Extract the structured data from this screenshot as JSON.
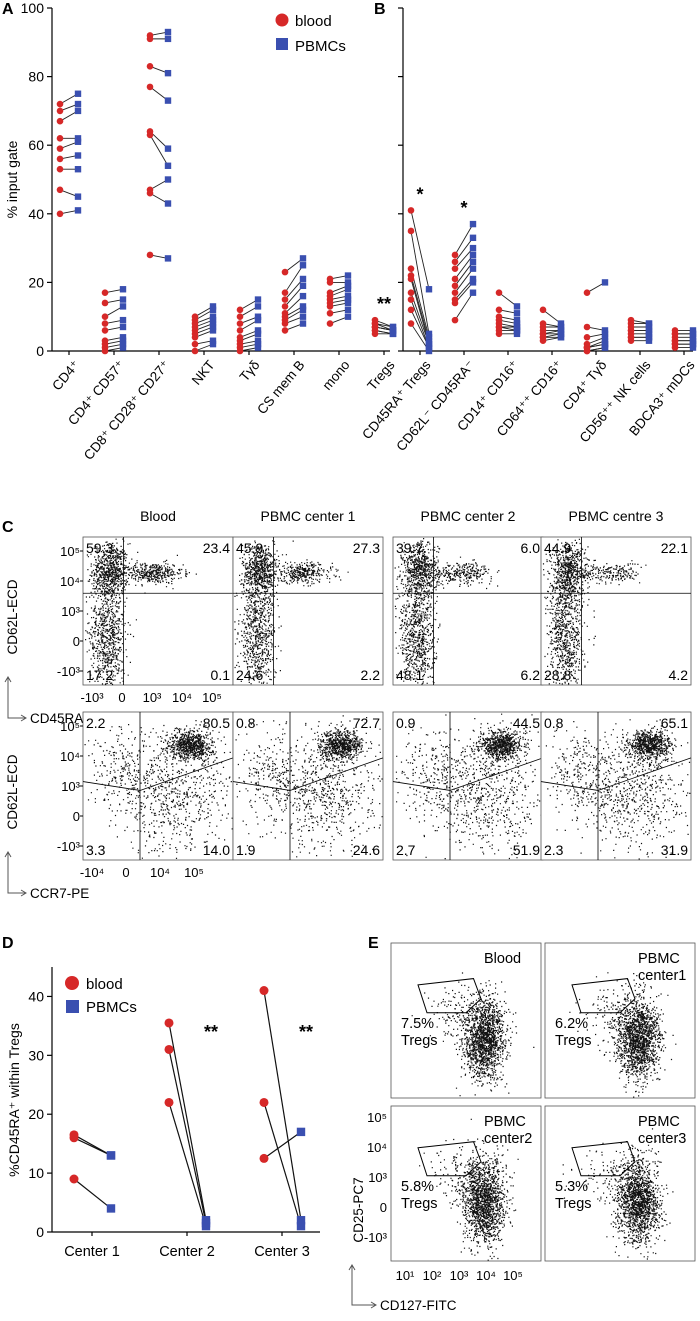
{
  "colors": {
    "blood": "#d62828",
    "pbmc": "#3a4fb0",
    "axis": "#000000"
  },
  "chart_data": [
    {
      "panel": "A",
      "type": "scatter",
      "ylabel": "% input gate",
      "ylim": [
        0,
        100
      ],
      "yticks": [
        "0",
        "20",
        "40",
        "60",
        "80",
        "100"
      ],
      "legend": [
        {
          "name": "blood",
          "marker": "circle"
        },
        {
          "name": "PBMCs",
          "marker": "square"
        }
      ],
      "categories": [
        {
          "label": "CD4⁺",
          "sig": "",
          "blood": [
            40,
            47,
            53,
            56,
            59,
            62,
            67,
            70,
            72
          ],
          "pbmc": [
            41,
            45,
            53,
            57,
            61,
            62,
            70,
            72,
            75
          ]
        },
        {
          "label": "CD4⁺ CD57⁺",
          "sig": "",
          "blood": [
            0,
            1,
            2,
            3,
            6,
            8,
            10,
            14,
            17
          ],
          "pbmc": [
            1,
            2,
            3,
            4,
            7,
            9,
            13,
            15,
            18
          ]
        },
        {
          "label": "CD8⁺ CD28⁺ CD27⁺",
          "sig": "",
          "blood": [
            28,
            46,
            47,
            63,
            64,
            77,
            83,
            91,
            92
          ],
          "pbmc": [
            27,
            43,
            50,
            54,
            59,
            73,
            81,
            91,
            93
          ]
        },
        {
          "label": "NKT",
          "sig": "",
          "blood": [
            0,
            2,
            4,
            5,
            6,
            7,
            8,
            9,
            10
          ],
          "pbmc": [
            2,
            3,
            6,
            7,
            8,
            9,
            10,
            12,
            13
          ]
        },
        {
          "label": "Tγδ",
          "sig": "",
          "blood": [
            0,
            1,
            2,
            3,
            4,
            6,
            8,
            10,
            12
          ],
          "pbmc": [
            1,
            2,
            3,
            5,
            6,
            9,
            10,
            13,
            15
          ]
        },
        {
          "label": "CS mem B",
          "sig": "",
          "blood": [
            6,
            8,
            9,
            10,
            11,
            13,
            15,
            17,
            23
          ],
          "pbmc": [
            8,
            10,
            12,
            13,
            16,
            19,
            21,
            25,
            27
          ]
        },
        {
          "label": "mono",
          "sig": "",
          "blood": [
            8,
            11,
            13,
            14,
            15,
            16,
            17,
            20,
            21
          ],
          "pbmc": [
            10,
            12,
            14,
            15,
            16,
            18,
            19,
            20,
            22
          ]
        },
        {
          "label": "Tregs",
          "sig": "**",
          "blood": [
            5,
            6,
            6,
            7,
            7,
            7,
            8,
            8,
            9
          ],
          "pbmc": [
            5,
            5,
            5,
            6,
            6,
            6,
            6,
            7,
            7
          ]
        }
      ]
    },
    {
      "panel": "B",
      "type": "scatter",
      "ylim": [
        0,
        100
      ],
      "categories": [
        {
          "label": "CD45RA⁺ Tregs",
          "sig": "*",
          "blood": [
            8,
            12,
            15,
            17,
            21,
            22,
            24,
            35,
            41
          ],
          "pbmc": [
            0,
            1,
            1,
            2,
            2,
            3,
            4,
            5,
            18
          ]
        },
        {
          "label": "CD62L⁻ CD45RA⁻",
          "sig": "*",
          "blood": [
            9,
            14,
            15,
            17,
            19,
            21,
            24,
            26,
            28
          ],
          "pbmc": [
            17,
            20,
            21,
            24,
            26,
            28,
            30,
            33,
            37
          ]
        },
        {
          "label": "CD14⁺ CD16⁺",
          "sig": "",
          "blood": [
            5,
            6,
            7,
            7,
            8,
            9,
            10,
            12,
            17
          ],
          "pbmc": [
            5,
            6,
            6,
            7,
            7,
            8,
            9,
            11,
            13
          ]
        },
        {
          "label": "CD64⁺⁺ CD16⁺",
          "sig": "",
          "blood": [
            3,
            4,
            4,
            5,
            5,
            6,
            7,
            8,
            12
          ],
          "pbmc": [
            4,
            4,
            5,
            5,
            6,
            6,
            7,
            7,
            8
          ]
        },
        {
          "label": "CD4⁺ Tγδ",
          "sig": "",
          "blood": [
            0,
            0,
            1,
            1,
            1,
            2,
            4,
            7,
            17
          ],
          "pbmc": [
            1,
            1,
            2,
            2,
            3,
            4,
            5,
            6,
            20
          ]
        },
        {
          "label": "CD56⁺⁺ NK cells",
          "sig": "",
          "blood": [
            3,
            4,
            4,
            5,
            6,
            6,
            7,
            8,
            9
          ],
          "pbmc": [
            3,
            4,
            4,
            5,
            6,
            6,
            7,
            8,
            8
          ]
        },
        {
          "label": "BDCA3⁺ mDCs",
          "sig": "",
          "blood": [
            1,
            2,
            2,
            3,
            3,
            4,
            5,
            5,
            6
          ],
          "pbmc": [
            1,
            2,
            2,
            3,
            3,
            4,
            5,
            5,
            6
          ]
        }
      ]
    },
    {
      "panel": "C",
      "type": "scatter",
      "rows": [
        {
          "ylabel": "CD62L-ECD",
          "xlabel": "CD45RA-PB",
          "yticks": [
            "10⁵",
            "10⁴",
            "10³",
            "0",
            "-10³"
          ],
          "xticks": [
            "-10³",
            "0",
            "10³",
            "10⁴",
            "10⁵"
          ],
          "plots": [
            {
              "title": "Blood",
              "quadrants": [
                "59.3",
                "23.4",
                "17.2",
                "0.1"
              ]
            },
            {
              "title": "PBMC center 1",
              "quadrants": [
                "45.9",
                "27.3",
                "24.6",
                "2.2"
              ]
            },
            {
              "title": "PBMC center 2",
              "quadrants": [
                "39.7",
                "6.0",
                "48.1",
                "6.2"
              ]
            },
            {
              "title": "PBMC centre 3",
              "quadrants": [
                "44.9",
                "22.1",
                "28.8",
                "4.2"
              ]
            }
          ]
        },
        {
          "ylabel": "CD62L-ECD",
          "xlabel": "CCR7-PE",
          "yticks": [
            "10⁵",
            "10⁴",
            "10³",
            "0",
            "-10³"
          ],
          "xticks": [
            "-10⁴",
            "0",
            "10⁴",
            "10⁵"
          ],
          "plots": [
            {
              "quadrants": [
                "2.2",
                "80.5",
                "3.3",
                "14.0"
              ]
            },
            {
              "quadrants": [
                "0.8",
                "72.7",
                "1.9",
                "24.6"
              ]
            },
            {
              "quadrants": [
                "0.9",
                "44.5",
                "2.7",
                "51.9"
              ]
            },
            {
              "quadrants": [
                "0.8",
                "65.1",
                "2.3",
                "31.9"
              ]
            }
          ]
        }
      ]
    },
    {
      "panel": "D",
      "type": "scatter",
      "ylabel": "%CD45RA⁺ within Tregs",
      "ylim": [
        0,
        45
      ],
      "yticks": [
        "0",
        "10",
        "20",
        "30",
        "40"
      ],
      "legend": [
        {
          "name": "blood",
          "marker": "circle"
        },
        {
          "name": "PBMCs",
          "marker": "square"
        }
      ],
      "categories": [
        {
          "label": "Center 1",
          "sig": "",
          "pairs": [
            [
              16.5,
              13
            ],
            [
              16,
              13
            ],
            [
              9,
              4
            ]
          ]
        },
        {
          "label": "Center 2",
          "sig": "**",
          "pairs": [
            [
              35.5,
              2
            ],
            [
              31,
              1.5
            ],
            [
              22,
              1
            ]
          ]
        },
        {
          "label": "Center 3",
          "sig": "**",
          "pairs": [
            [
              41,
              2
            ],
            [
              22,
              1
            ],
            [
              12.5,
              17
            ]
          ]
        }
      ]
    },
    {
      "panel": "E",
      "type": "scatter",
      "ylabel": "CD25-PC7",
      "xlabel": "CD127-FITC",
      "yticks": [
        "10⁵",
        "10⁴",
        "10³",
        "0",
        "-10³"
      ],
      "xticks": [
        "10¹",
        "10²",
        "10³",
        "10⁴",
        "10⁵"
      ],
      "plots": [
        {
          "title_lines": [
            "Blood"
          ],
          "gate_lines": [
            "7.5%",
            "Tregs"
          ]
        },
        {
          "title_lines": [
            "PBMC",
            "center1"
          ],
          "gate_lines": [
            "6.2%",
            "Tregs"
          ]
        },
        {
          "title_lines": [
            "PBMC",
            "center2"
          ],
          "gate_lines": [
            "5.8%",
            "Tregs"
          ]
        },
        {
          "title_lines": [
            "PBMC",
            "center3"
          ],
          "gate_lines": [
            "5.3%",
            "Tregs"
          ]
        }
      ]
    }
  ]
}
